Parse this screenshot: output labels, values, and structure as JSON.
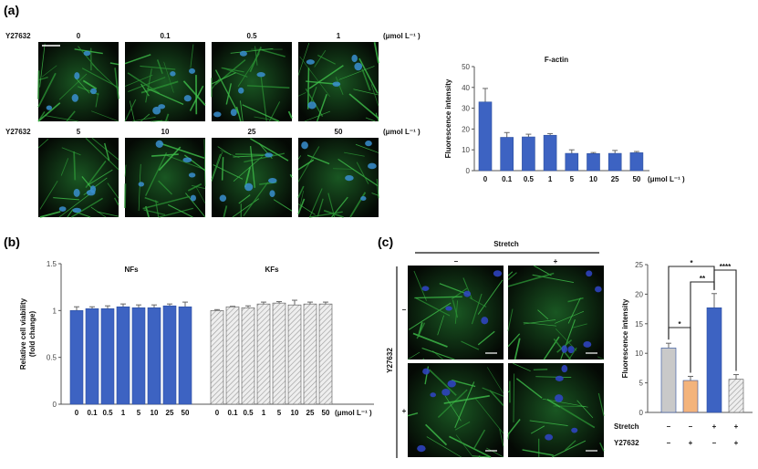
{
  "panels": {
    "a": "(a)",
    "b": "(b)",
    "c": "(c)"
  },
  "panel_a": {
    "drug": "Y27632",
    "unit": "(μmol L⁻¹ )",
    "row1": [
      "0",
      "0.1",
      "0.5",
      "1"
    ],
    "row2": [
      "5",
      "10",
      "25",
      "50"
    ]
  },
  "panel_c": {
    "stretch": "Stretch",
    "minus": "–",
    "plus": "+",
    "drug": "Y27632"
  },
  "chart_data": [
    {
      "type": "bar",
      "title": "F-actin",
      "ylabel": "Fluorescence intensity",
      "xunit": "(μmol L⁻¹ )",
      "categories": [
        "0",
        "0.1",
        "0.5",
        "1",
        "5",
        "10",
        "25",
        "50"
      ],
      "values": [
        33,
        16,
        16.2,
        17,
        8.3,
        8.2,
        8.3,
        8.6
      ],
      "errors": [
        6.5,
        2.3,
        1.3,
        0.8,
        1.7,
        0.5,
        1.4,
        0.6
      ],
      "ylim": [
        0,
        50
      ],
      "yticks": [
        "0",
        "10",
        "20",
        "30",
        "40",
        "50"
      ],
      "color": "#3d63c2"
    },
    {
      "type": "bar",
      "ylabel": [
        "Relative cell viability",
        "(fold change)"
      ],
      "xunit": "(μmol L⁻¹ )",
      "categories": [
        "0",
        "0.1",
        "0.5",
        "1",
        "5",
        "10",
        "25",
        "50"
      ],
      "series": [
        {
          "name": "NFs",
          "values": [
            1.0,
            1.02,
            1.02,
            1.04,
            1.03,
            1.03,
            1.05,
            1.04
          ],
          "errors": [
            0.04,
            0.02,
            0.03,
            0.03,
            0.03,
            0.03,
            0.02,
            0.05
          ],
          "color": "#3d63c2",
          "pattern": "solid"
        },
        {
          "name": "KFs",
          "values": [
            1.0,
            1.04,
            1.03,
            1.07,
            1.08,
            1.06,
            1.07,
            1.07
          ],
          "errors": [
            0.01,
            0.005,
            0.02,
            0.02,
            0.015,
            0.05,
            0.02,
            0.02
          ],
          "color": "#d9d9d9",
          "pattern": "hatched"
        }
      ],
      "ylim": [
        0,
        1.5
      ],
      "yticks": [
        "0",
        "0.5",
        "1",
        "1.5"
      ]
    },
    {
      "type": "bar",
      "ylabel": "Fluorescence intensity",
      "groups": [
        {
          "stretch": "–",
          "y27632": "–",
          "value": 10.9,
          "error": 0.8,
          "color": "#c9c9c9",
          "pattern": "solid"
        },
        {
          "stretch": "–",
          "y27632": "+",
          "value": 5.4,
          "error": 0.7,
          "color": "#f3b37c",
          "pattern": "solid"
        },
        {
          "stretch": "+",
          "y27632": "–",
          "value": 17.7,
          "error": 2.4,
          "color": "#3d63c2",
          "pattern": "solid"
        },
        {
          "stretch": "+",
          "y27632": "+",
          "value": 5.6,
          "error": 0.8,
          "color": "#e6e6e6",
          "pattern": "hatched"
        }
      ],
      "row_labels": [
        "Stretch",
        "Y27632"
      ],
      "ylim": [
        0,
        25
      ],
      "yticks": [
        "0",
        "5",
        "10",
        "15",
        "20",
        "25"
      ],
      "significance": [
        {
          "from": 1,
          "to": 2,
          "label": "*"
        },
        {
          "from": 1,
          "to": 3,
          "label": "*"
        },
        {
          "from": 2,
          "to": 3,
          "label": "**"
        },
        {
          "from": 3,
          "to": 4,
          "label": "****"
        }
      ]
    }
  ]
}
